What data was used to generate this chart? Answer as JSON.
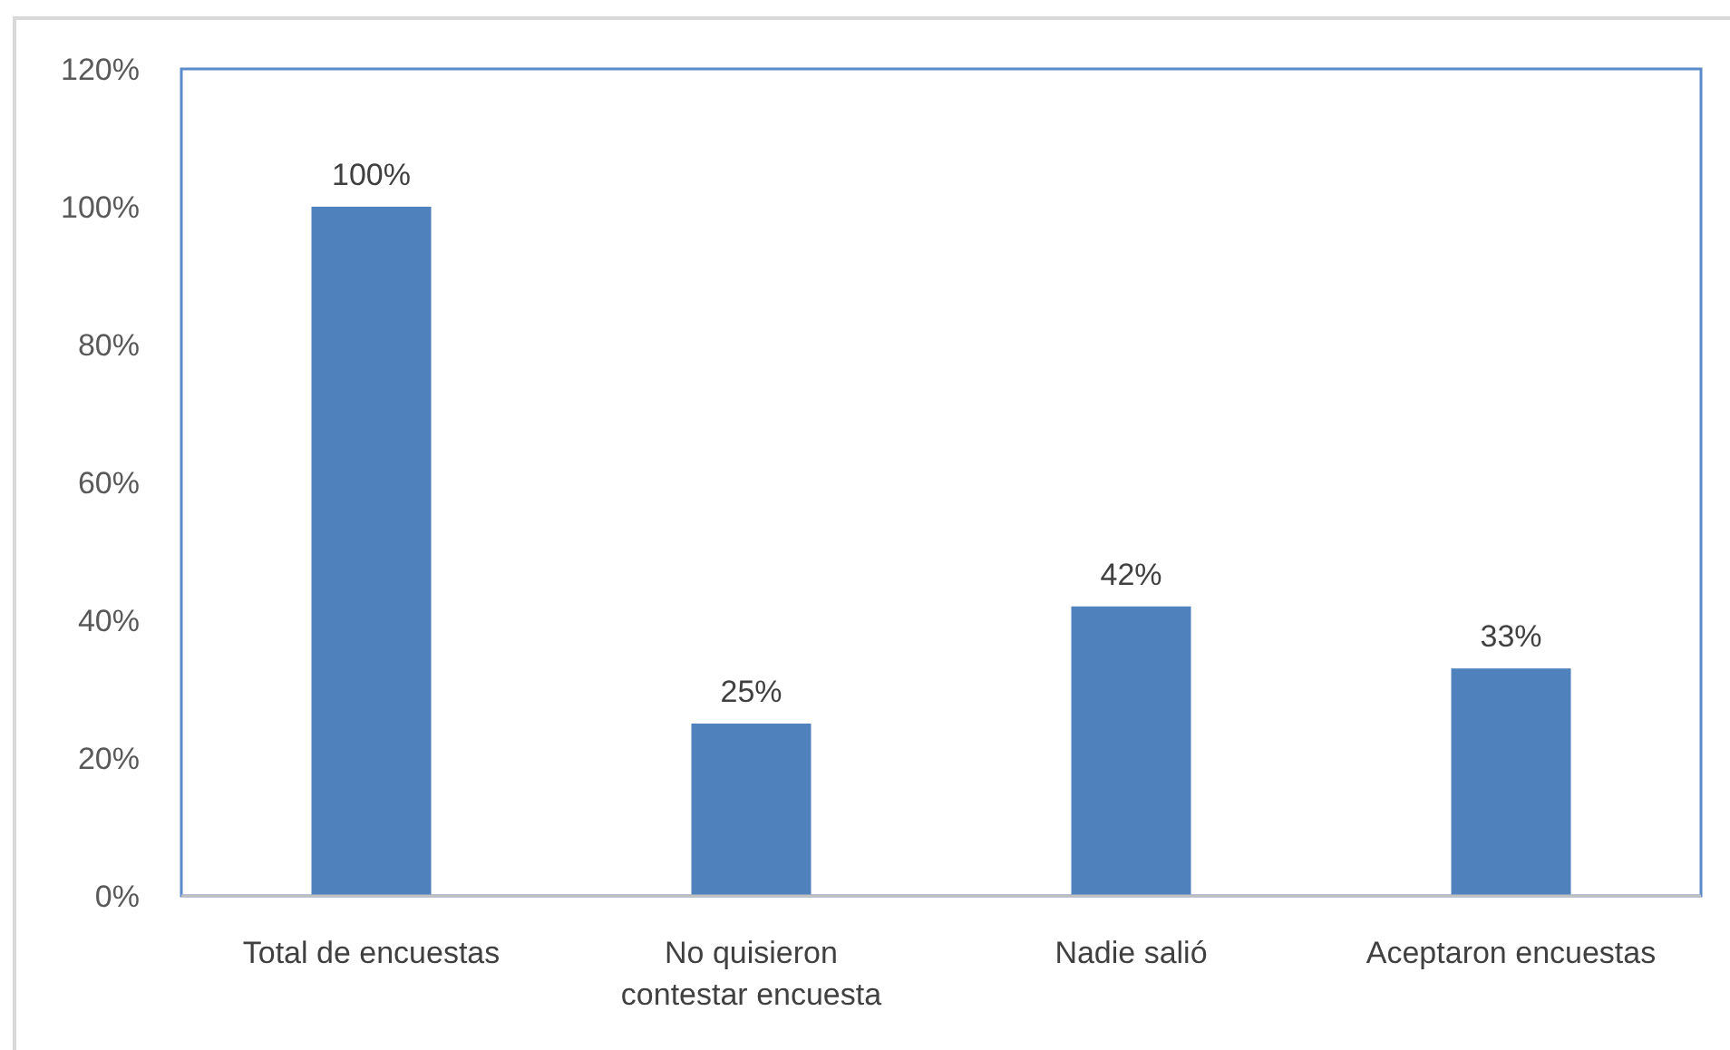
{
  "chart_data": {
    "type": "bar",
    "categories": [
      "Total de encuestas",
      "No quisieron contestar encuesta",
      "Nadie salió",
      "Aceptaron encuestas"
    ],
    "values": [
      100,
      25,
      42,
      33
    ],
    "color": "#4f81bd",
    "value_labels": [
      "100%",
      "25%",
      "42%",
      "33%"
    ],
    "ylim": [
      0,
      120
    ],
    "yticks": [
      {
        "value": 0,
        "label": "0%"
      },
      {
        "value": 20,
        "label": "20%"
      },
      {
        "value": 40,
        "label": "40%"
      },
      {
        "value": 60,
        "label": "60%"
      },
      {
        "value": 80,
        "label": "80%"
      },
      {
        "value": 100,
        "label": "100%"
      },
      {
        "value": 120,
        "label": "120%"
      }
    ]
  }
}
